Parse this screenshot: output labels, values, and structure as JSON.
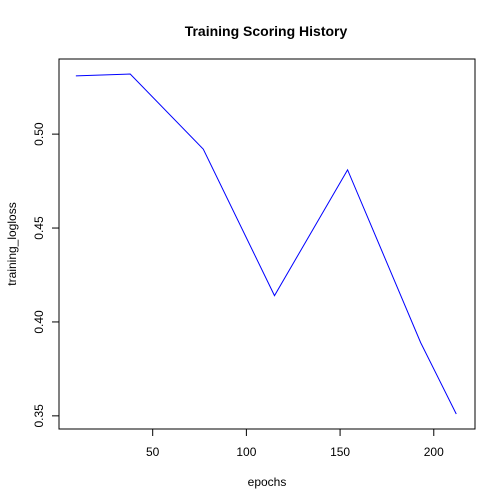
{
  "chart_data": {
    "type": "line",
    "title": "Training Scoring History",
    "xlabel": "epochs",
    "ylabel": "training_logloss",
    "x": [
      9,
      38,
      77,
      115,
      154,
      193,
      212
    ],
    "series": [
      {
        "values": [
          0.531,
          0.532,
          0.492,
          0.414,
          0.481,
          0.389,
          0.351
        ],
        "color": "#0000ff"
      }
    ],
    "xlim": [
      0,
      222
    ],
    "ylim": [
      0.343,
      0.54
    ],
    "xticks": [
      50,
      100,
      150,
      200
    ],
    "yticks": [
      0.35,
      0.4,
      0.45,
      0.5
    ],
    "xtick_labels": [
      "50",
      "100",
      "150",
      "200"
    ],
    "ytick_labels": [
      "0.35",
      "0.40",
      "0.45",
      "0.50"
    ],
    "grid": false,
    "legend": "none"
  }
}
